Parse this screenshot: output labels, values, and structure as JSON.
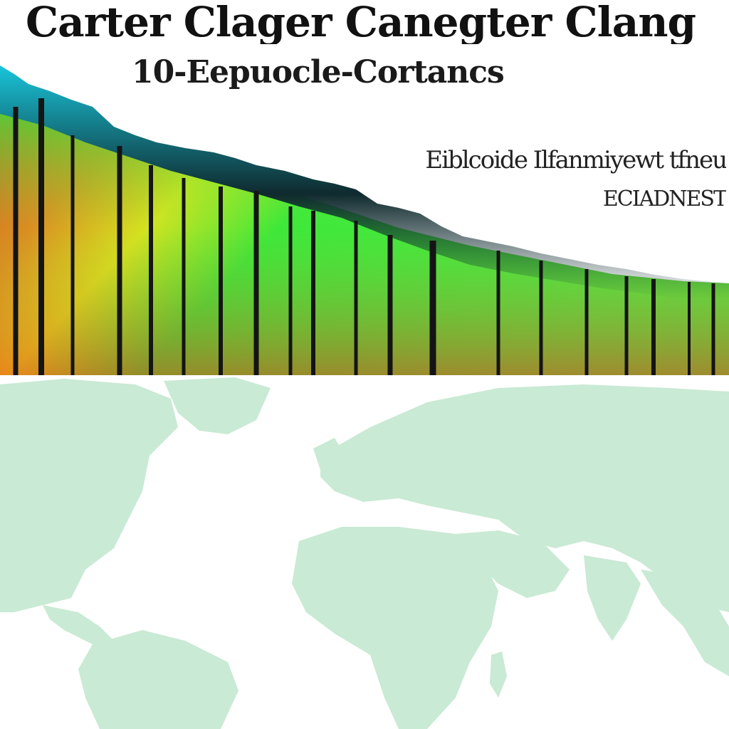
{
  "title": "Carter Clager Canegter Clang",
  "subtitle": "10-Eepuocle-Cortancs",
  "side_text_1": "Eiblcoide Ilfanmiyewt tfneu",
  "side_text_2": "ECIADNEST",
  "colors": {
    "heat_red": "#e8321b",
    "heat_orange": "#f07a1c",
    "heat_yellow": "#e8e21a",
    "heat_green": "#2ee83a",
    "ridge_dark": "#0f2a2e",
    "ridge_cyan": "#19c4d9",
    "land": "#c9ead4",
    "ocean": "#ffffff",
    "bar_dark": "#141414"
  }
}
